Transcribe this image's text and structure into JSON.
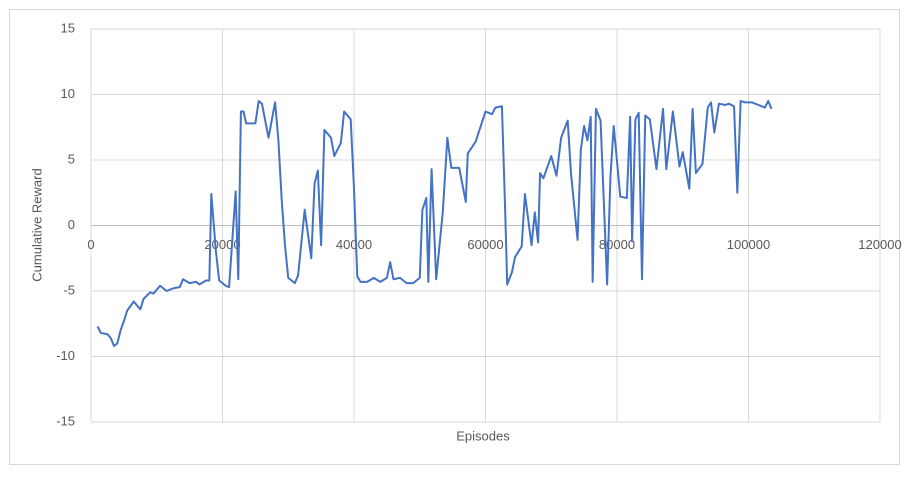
{
  "chart_data": {
    "type": "line",
    "x_label": "Episodes",
    "y_label": "Cumulative Reward",
    "xlim": [
      0,
      120000
    ],
    "xticks": [
      0,
      20000,
      40000,
      60000,
      80000,
      100000,
      120000
    ],
    "ylim": [
      -15,
      15
    ],
    "yticks": [
      -15,
      -10,
      -5,
      0,
      5,
      10,
      15
    ],
    "grid": true,
    "series": [
      {
        "color": "#4472c4",
        "x": [
          1000,
          1500,
          2500,
          3000,
          3500,
          4000,
          4500,
          5000,
          5500,
          6500,
          7500,
          8000,
          9000,
          9500,
          10500,
          11500,
          12500,
          13500,
          14000,
          15000,
          16000,
          16500,
          17500,
          18000,
          18300,
          19000,
          19500,
          20500,
          21000,
          22000,
          22400,
          22800,
          23200,
          23600,
          25000,
          25500,
          26000,
          27000,
          28000,
          28500,
          29000,
          29500,
          30000,
          31000,
          31500,
          32500,
          33500,
          34000,
          34500,
          35000,
          35500,
          36500,
          37000,
          38000,
          38500,
          39500,
          40000,
          40500,
          41000,
          42000,
          43000,
          44000,
          45000,
          45500,
          46000,
          47000,
          48000,
          49000,
          50000,
          50400,
          51000,
          51300,
          51800,
          52500,
          53500,
          54200,
          54800,
          56000,
          57000,
          57300,
          58500,
          60000,
          61000,
          61500,
          62500,
          63000,
          63300,
          64000,
          64500,
          65000,
          65500,
          66000,
          67000,
          67500,
          68000,
          68300,
          68800,
          70000,
          70800,
          71500,
          72500,
          73000,
          74000,
          74500,
          75000,
          75500,
          76000,
          76300,
          76800,
          77500,
          78500,
          79000,
          79500,
          80500,
          81500,
          82000,
          82300,
          82800,
          83300,
          83800,
          84300,
          85000,
          86000,
          87000,
          87500,
          88500,
          89500,
          90000,
          91000,
          91500,
          92000,
          93000,
          93800,
          94300,
          94800,
          95500,
          96500,
          97000,
          97800,
          98300,
          98800,
          99500,
          100500,
          102500,
          103000,
          103500
        ],
        "values": [
          -7.7,
          -8.2,
          -8.3,
          -8.6,
          -9.2,
          -9.0,
          -8.0,
          -7.3,
          -6.5,
          -5.8,
          -6.4,
          -5.6,
          -5.1,
          -5.2,
          -4.6,
          -5.0,
          -4.8,
          -4.7,
          -4.1,
          -4.4,
          -4.3,
          -4.5,
          -4.2,
          -4.2,
          2.4,
          -2.0,
          -4.2,
          -4.6,
          -4.7,
          2.6,
          -4.1,
          8.7,
          8.7,
          7.8,
          7.8,
          9.5,
          9.3,
          6.7,
          9.4,
          6.5,
          2.0,
          -1.5,
          -4.0,
          -4.4,
          -3.8,
          1.2,
          -2.5,
          3.2,
          4.2,
          -1.5,
          7.3,
          6.7,
          5.3,
          6.3,
          8.7,
          8.1,
          2.8,
          -3.9,
          -4.3,
          -4.3,
          -4.0,
          -4.3,
          -4.0,
          -2.8,
          -4.1,
          -4.0,
          -4.4,
          -4.4,
          -4.0,
          1.2,
          2.1,
          -4.3,
          4.3,
          -4.1,
          1.0,
          6.7,
          4.4,
          4.4,
          1.8,
          5.5,
          6.4,
          8.7,
          8.5,
          9.0,
          9.1,
          1.0,
          -4.5,
          -3.6,
          -2.4,
          -2.0,
          -1.6,
          2.4,
          -1.5,
          1.0,
          -1.3,
          4.0,
          3.6,
          5.3,
          3.8,
          6.7,
          8.0,
          4.0,
          -1.1,
          5.8,
          7.6,
          6.5,
          8.3,
          -4.3,
          8.9,
          8.0,
          -4.5,
          3.7,
          7.6,
          2.2,
          2.1,
          8.3,
          -1.2,
          8.1,
          8.6,
          -4.1,
          8.4,
          8.1,
          4.3,
          8.9,
          4.3,
          8.7,
          4.5,
          5.6,
          2.8,
          8.9,
          4.0,
          4.7,
          9.0,
          9.4,
          7.1,
          9.3,
          9.2,
          9.3,
          9.1,
          2.5,
          9.5,
          9.4,
          9.4,
          9.0,
          9.5,
          8.9
        ]
      }
    ]
  }
}
